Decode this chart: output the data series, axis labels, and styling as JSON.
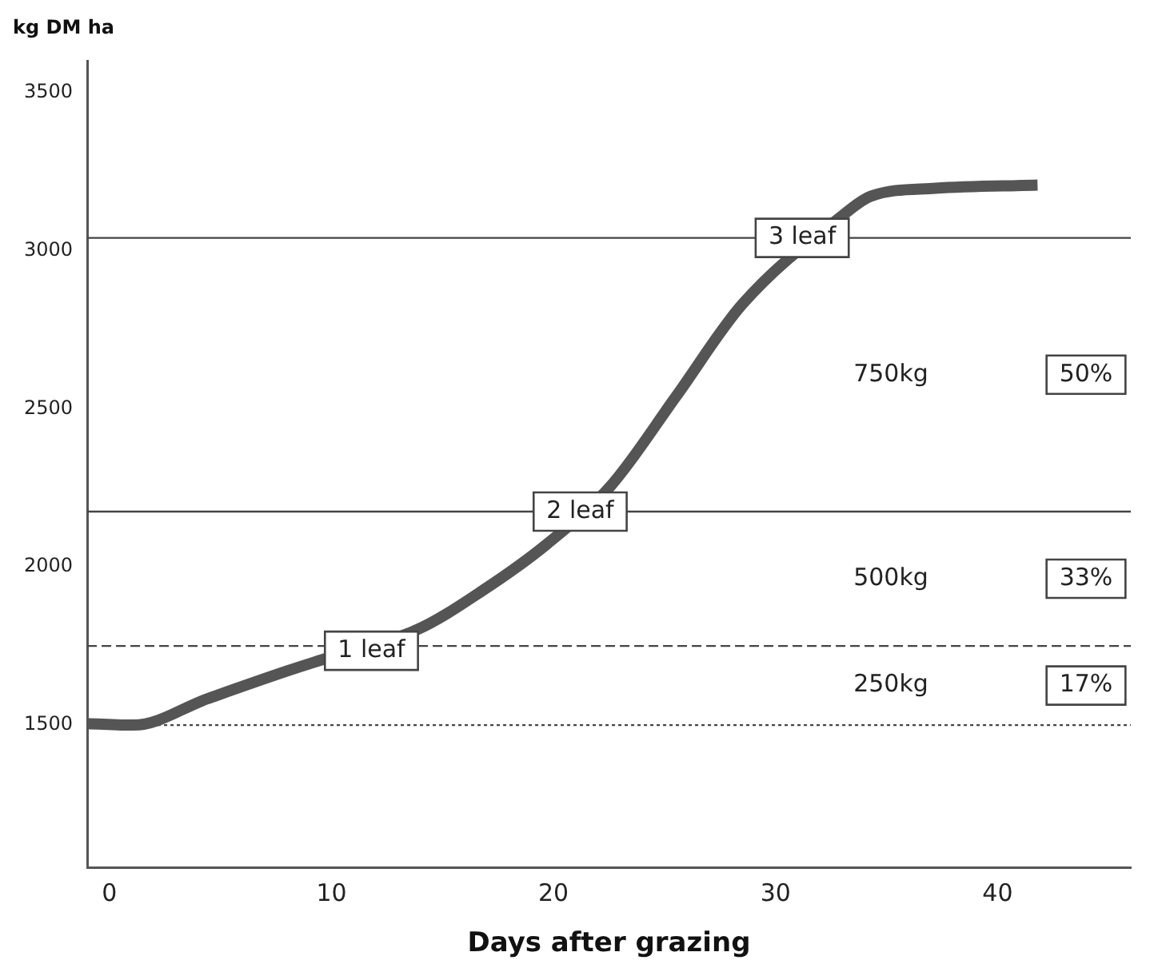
{
  "chart_data": {
    "type": "line",
    "xlabel": "Days after grazing",
    "ylabel": "kg DM ha",
    "x": [
      -1,
      1.1,
      4.4,
      8,
      9.5,
      13.9,
      16.8,
      19.7,
      22.6,
      25.5,
      28.5,
      33,
      34.3,
      37.2,
      41.8
    ],
    "series": [
      {
        "color": "#555555",
        "values": [
          1505,
          1500,
          1583,
          1671,
          1705,
          1803,
          1925,
          2072,
          2258,
          2537,
          2830,
          3110,
          3172,
          3197,
          3207
        ]
      }
    ],
    "xlim": [
      -1,
      46
    ],
    "ylim": [
      1050,
      3600
    ],
    "xticks": [
      0,
      10,
      20,
      30,
      40
    ],
    "yticks": [
      1500,
      2000,
      2500,
      3000,
      3500
    ],
    "grid": false,
    "legend": false,
    "marker": "none",
    "line_style": "solid",
    "ref_lines": [
      {
        "axis": "y",
        "value": 1500,
        "line_style": "dotted",
        "color": "#444444"
      },
      {
        "axis": "y",
        "value": 1750,
        "line_style": "dashed",
        "color": "#444444"
      },
      {
        "axis": "y",
        "value": 2175,
        "line_style": "solid",
        "color": "#444444"
      },
      {
        "axis": "y",
        "value": 3040,
        "line_style": "solid",
        "color": "#444444"
      }
    ],
    "annotations": [
      {
        "text": "1 leaf",
        "x": 11.8,
        "y": 1735
      },
      {
        "text": "2 leaf",
        "x": 21.2,
        "y": 2175
      },
      {
        "text": "3 leaf",
        "x": 31.2,
        "y": 3040
      },
      "750kg",
      "500kg",
      "250kg",
      "50%",
      "33%",
      "17%"
    ]
  }
}
